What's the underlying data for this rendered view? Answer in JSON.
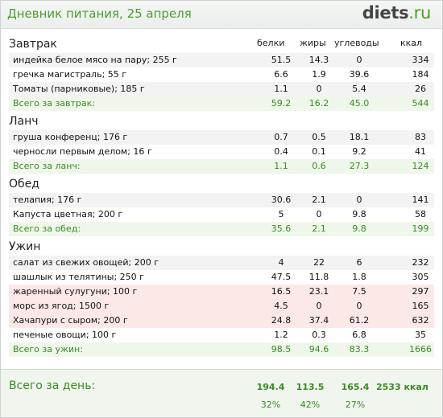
{
  "header": {
    "title": "Дневник питания, 25 апреля",
    "logo_main": "diets",
    "logo_suffix": ".ru"
  },
  "columns": {
    "protein": "белки",
    "fat": "жиры",
    "carbs": "углеводы",
    "kcal": "ккал"
  },
  "meals": [
    {
      "title": "Завтрак",
      "items": [
        {
          "name": "индейка белое мясо на пару; 255 г",
          "p": "51.5",
          "f": "14.3",
          "c": "0",
          "k": "334"
        },
        {
          "name": "гречка магистраль; 55 г",
          "p": "6.6",
          "f": "1.9",
          "c": "39.6",
          "k": "184"
        },
        {
          "name": "Томаты (парниковые); 185 г",
          "p": "1.1",
          "f": "0",
          "c": "5.4",
          "k": "26"
        }
      ],
      "total": {
        "name": "Всего за завтрак:",
        "p": "59.2",
        "f": "16.2",
        "c": "45.0",
        "k": "544"
      }
    },
    {
      "title": "Ланч",
      "items": [
        {
          "name": "груша конференц; 176 г",
          "p": "0.7",
          "f": "0.5",
          "c": "18.1",
          "k": "83"
        },
        {
          "name": "черносли первым делом; 16 г",
          "p": "0.4",
          "f": "0.1",
          "c": "9.2",
          "k": "41"
        }
      ],
      "total": {
        "name": "Всего за ланч:",
        "p": "1.1",
        "f": "0.6",
        "c": "27.3",
        "k": "124"
      }
    },
    {
      "title": "Обед",
      "items": [
        {
          "name": "телапия; 176 г",
          "p": "30.6",
          "f": "2.1",
          "c": "0",
          "k": "141"
        },
        {
          "name": "Капуста цветная; 200 г",
          "p": "5",
          "f": "0",
          "c": "9.8",
          "k": "58"
        }
      ],
      "total": {
        "name": "Всего за обед:",
        "p": "35.6",
        "f": "2.1",
        "c": "9.8",
        "k": "199"
      }
    },
    {
      "title": "Ужин",
      "items": [
        {
          "name": "салат из свежих овощей; 200 г",
          "p": "4",
          "f": "22",
          "c": "6",
          "k": "232"
        },
        {
          "name": "шашлык из телятины; 250 г",
          "p": "47.5",
          "f": "11.8",
          "c": "1.8",
          "k": "305"
        },
        {
          "name": "жаренный сулугуни; 100 г",
          "p": "16.5",
          "f": "23.1",
          "c": "7.5",
          "k": "297"
        },
        {
          "name": "морс из ягод; 1500 г",
          "p": "4.5",
          "f": "0",
          "c": "0",
          "k": "165"
        },
        {
          "name": "Хачапури с сыром; 200 г",
          "p": "24.8",
          "f": "37.4",
          "c": "61.2",
          "k": "632"
        },
        {
          "name": "печеные овощи; 100 г",
          "p": "1.2",
          "f": "0.3",
          "c": "6.8",
          "k": "35"
        }
      ],
      "total": {
        "name": "Всего за ужин:",
        "p": "98.5",
        "f": "94.6",
        "c": "83.3",
        "k": "1666"
      }
    }
  ],
  "day": {
    "label": "Всего за день:",
    "p": "194.4",
    "f": "113.5",
    "c": "165.4",
    "kcal": "2533 ккал",
    "p_pct": "32%",
    "f_pct": "42%",
    "c_pct": "27%"
  },
  "colors": {
    "accent": "#4d9d2f",
    "highlight_row": "#fde8e8",
    "total_row": "#eef7ea"
  }
}
